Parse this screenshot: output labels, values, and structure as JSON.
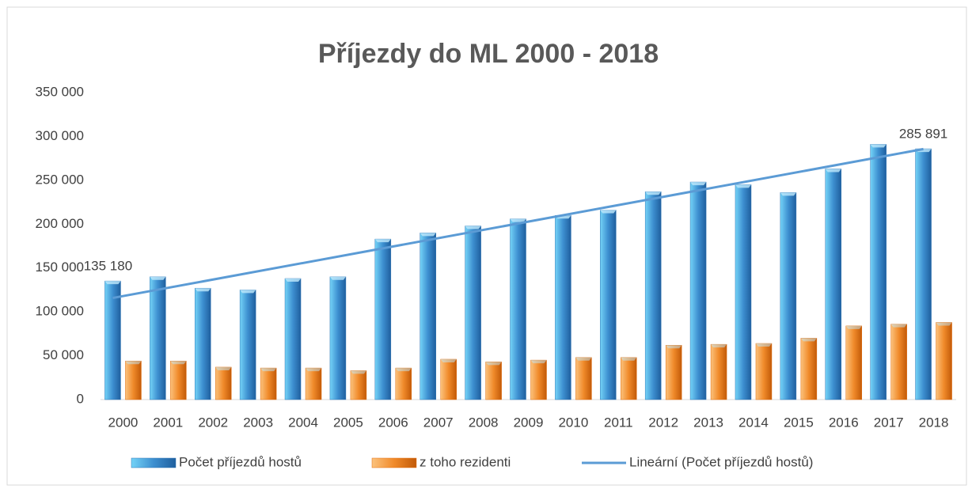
{
  "chart_data": {
    "type": "bar",
    "title": "Příjezdy do ML 2000 - 2018",
    "categories": [
      "2000",
      "2001",
      "2002",
      "2003",
      "2004",
      "2005",
      "2006",
      "2007",
      "2008",
      "2009",
      "2010",
      "2011",
      "2012",
      "2013",
      "2014",
      "2015",
      "2016",
      "2017",
      "2018"
    ],
    "series": [
      {
        "name": "Počet příjezdů hostů",
        "color": "#2e74b5",
        "values": [
          135180,
          140000,
          127000,
          125000,
          138000,
          140000,
          183000,
          190000,
          198000,
          206000,
          210000,
          216000,
          237000,
          248000,
          245000,
          236000,
          263000,
          291000,
          285891
        ],
        "value_labels": [
          "135 180",
          null,
          null,
          null,
          null,
          null,
          null,
          null,
          null,
          null,
          null,
          null,
          null,
          null,
          null,
          null,
          null,
          null,
          "285 891"
        ]
      },
      {
        "name": "z toho rezidenti",
        "color": "#e36c0a",
        "values": [
          44000,
          44000,
          37000,
          36000,
          36000,
          33000,
          36000,
          46000,
          43000,
          45000,
          48000,
          48000,
          62000,
          63000,
          64000,
          70000,
          84000,
          86000,
          88000
        ]
      }
    ],
    "trendline": {
      "name": "Lineární (Počet příjezdů hostů)",
      "color": "#5b9bd5"
    },
    "ylim": [
      0,
      350000
    ],
    "yticks": [
      0,
      {
        "value": 50000,
        "label": "50 000"
      },
      {
        "value": 100000,
        "label": "100 000"
      },
      {
        "value": 150000,
        "label": "150 000"
      },
      {
        "value": 200000,
        "label": "200 000"
      },
      {
        "value": 250000,
        "label": "250 000"
      },
      {
        "value": 300000,
        "label": "300 000"
      },
      {
        "value": 350000,
        "label": "350 000"
      }
    ],
    "grid": false
  }
}
